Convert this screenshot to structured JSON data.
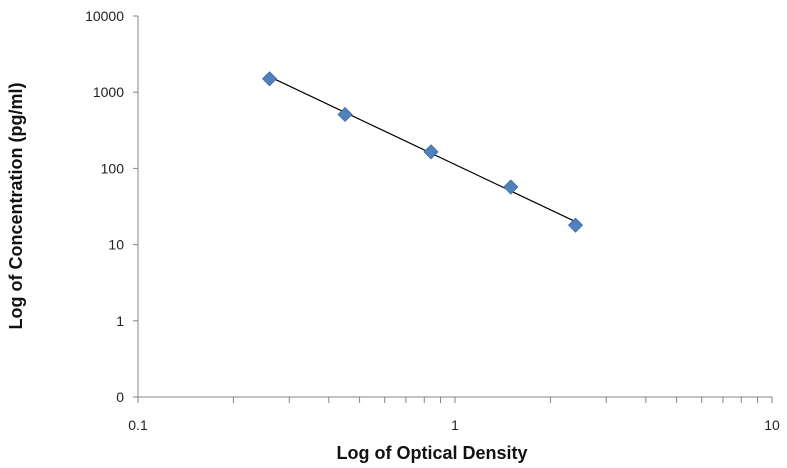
{
  "chart_data": {
    "type": "scatter",
    "title": "",
    "xlabel": "Log of Optical Density",
    "ylabel": "Log of Concentration (pg/ml)",
    "x_scale": "log",
    "y_scale": "log",
    "xlim": [
      0.1,
      10
    ],
    "ylim": [
      0,
      10000
    ],
    "x_ticks": [
      "0.1",
      "1",
      "10"
    ],
    "y_ticks": [
      "0",
      "1",
      "10",
      "100",
      "1000",
      "10000"
    ],
    "grid": false,
    "legend": "none",
    "series": [
      {
        "x": [
          0.26,
          0.45,
          0.84,
          1.5,
          2.4
        ],
        "y": [
          1500,
          510,
          165,
          57,
          18
        ],
        "marker": "diamond",
        "color": "#4F81BD"
      }
    ],
    "trendline": {
      "type": "power",
      "x": [
        0.26,
        2.4
      ],
      "y": [
        1600,
        20
      ],
      "color": "#000000"
    }
  }
}
